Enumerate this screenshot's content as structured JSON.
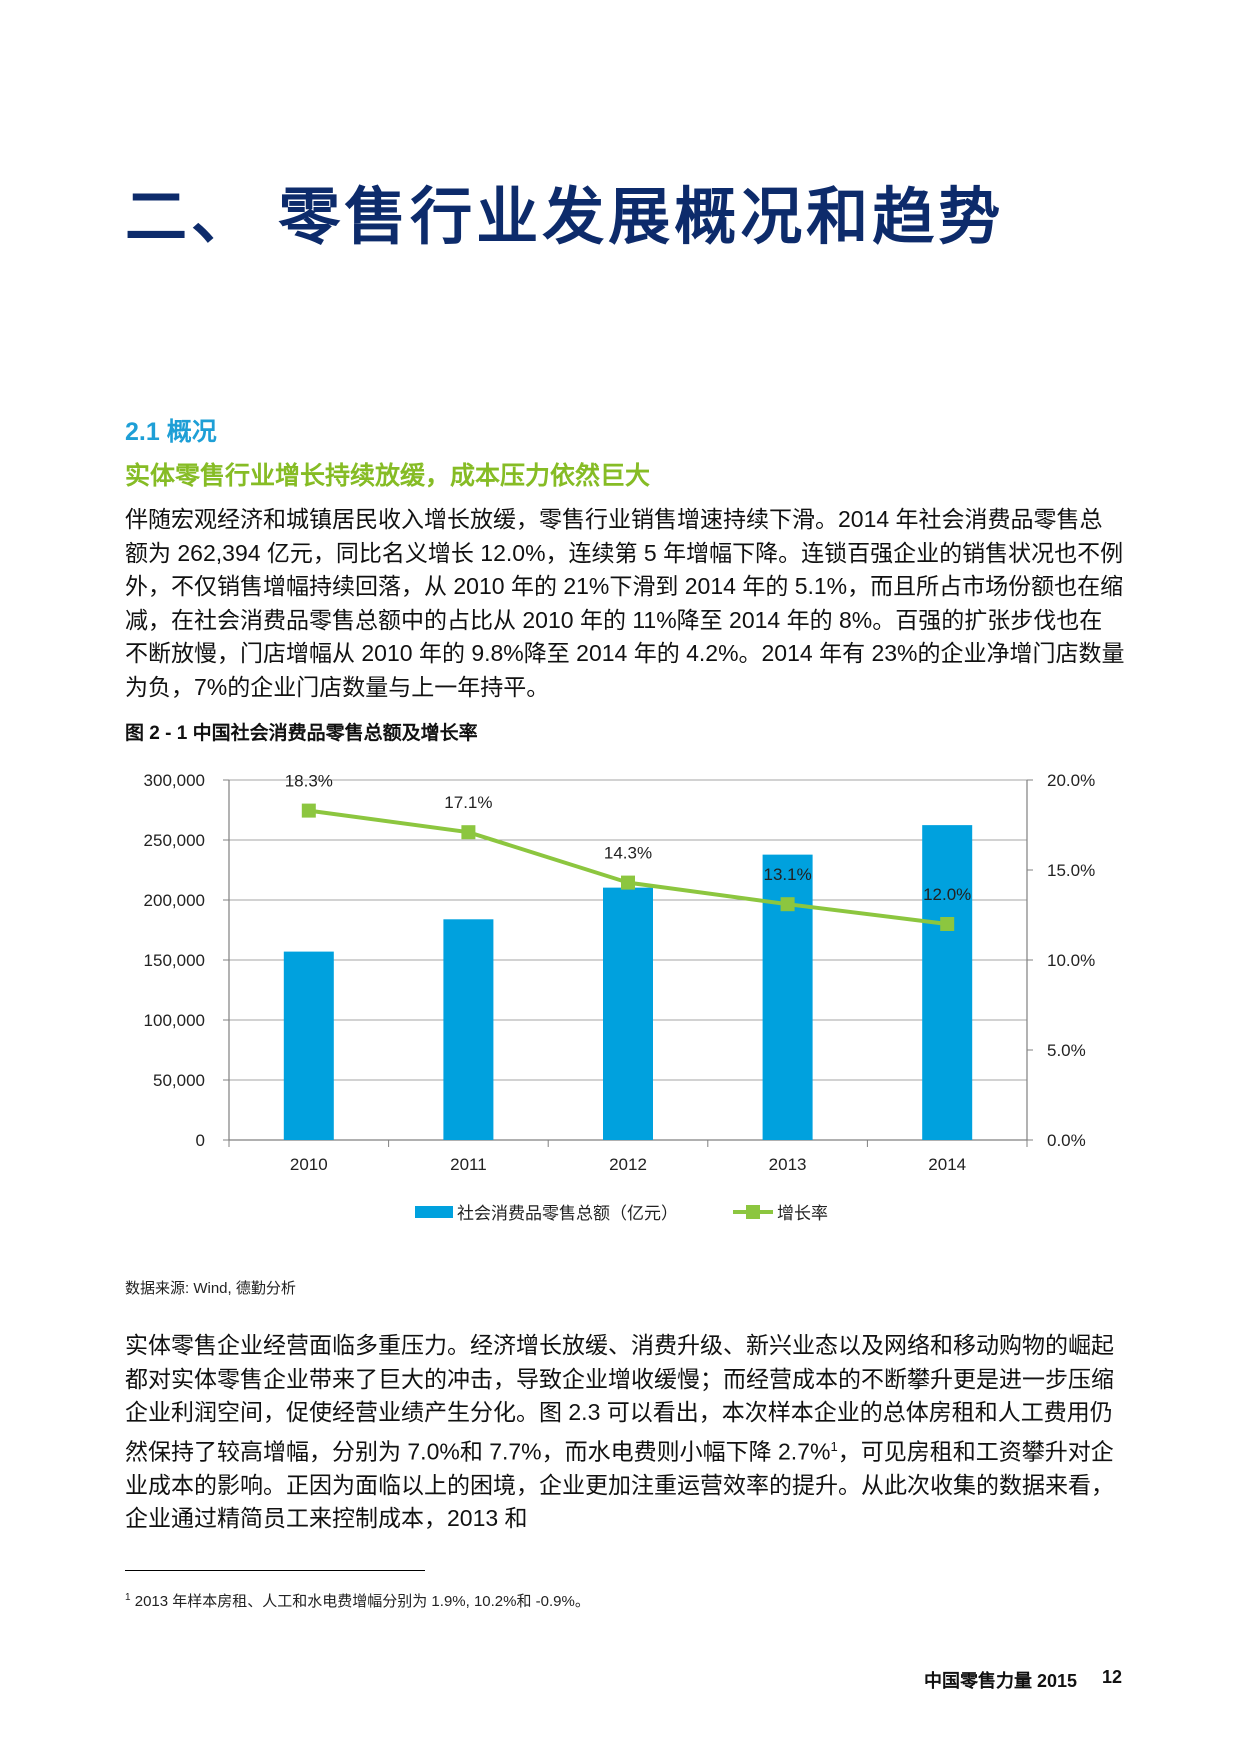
{
  "page_title": "二、 零售行业发展概况和趋势",
  "section": {
    "heading": "2.1 概况",
    "subheading": "实体零售行业增长持续放缓，成本压力依然巨大"
  },
  "paragraph1": "伴随宏观经济和城镇居民收入增长放缓，零售行业销售增速持续下滑。2014 年社会消费品零售总额为 262,394 亿元，同比名义增长 12.0%，连续第 5 年增幅下降。连锁百强企业的销售状况也不例外，不仅销售增幅持续回落，从 2010 年的 21%下滑到 2014 年的 5.1%，而且所占市场份额也在缩减，在社会消费品零售总额中的占比从 2010 年的 11%降至 2014 年的 8%。百强的扩张步伐也在不断放慢，门店增幅从 2010 年的 9.8%降至 2014 年的 4.2%。2014 年有 23%的企业净增门店数量为负，7%的企业门店数量与上一年持平。",
  "figure_caption": "图 2 - 1 中国社会消费品零售总额及增长率",
  "chart_data": {
    "type": "bar",
    "title": "图 2 - 1 中国社会消费品零售总额及增长率",
    "categories": [
      "2010",
      "2011",
      "2012",
      "2013",
      "2014"
    ],
    "series": [
      {
        "name": "社会消费品零售总额（亿元）",
        "type": "bar",
        "axis": "left",
        "values": [
          156998,
          183919,
          210307,
          237810,
          262394
        ],
        "color": "#00a1de"
      },
      {
        "name": "增长率",
        "type": "line",
        "axis": "right",
        "values": [
          18.3,
          17.1,
          14.3,
          13.1,
          12.0
        ],
        "labels": [
          "18.3%",
          "17.1%",
          "14.3%",
          "13.1%",
          "12.0%"
        ],
        "color": "#8cc63f"
      }
    ],
    "y_left": {
      "range": [
        0,
        300000
      ],
      "ticks": [
        0,
        50000,
        100000,
        150000,
        200000,
        250000,
        300000
      ],
      "tick_labels": [
        "0",
        "50,000",
        "100,000",
        "150,000",
        "200,000",
        "250,000",
        "300,000"
      ]
    },
    "y_right": {
      "range": [
        0,
        20
      ],
      "ticks": [
        0,
        5,
        10,
        15,
        20
      ],
      "tick_labels": [
        "0.0%",
        "5.0%",
        "10.0%",
        "15.0%",
        "20.0%"
      ]
    },
    "legend_position": "bottom",
    "grid": true
  },
  "source": "数据来源: Wind, 德勤分析",
  "paragraph2": {
    "before_ref": "实体零售企业经营面临多重压力。经济增长放缓、消费升级、新兴业态以及网络和移动购物的崛起都对实体零售企业带来了巨大的冲击，导致企业增收缓慢；而经营成本的不断攀升更是进一步压缩企业利润空间，促使经营业绩产生分化。图 2.3 可以看出，本次样本企业的总体房租和人工费用仍然保持了较高增幅，分别为 7.0%和 7.7%，而水电费则小幅下降 2.7%",
    "ref": "1",
    "after_ref": "，可见房租和工资攀升对企业成本的影响。正因为面临以上的困境，企业更加注重运营效率的提升。从此次收集的数据来看，企业通过精简员工来控制成本，2013 和"
  },
  "footnote": {
    "marker": "1",
    "text": " 2013 年样本房租、人工和水电费增幅分别为 1.9%, 10.2%和 -0.9%。"
  },
  "footer": {
    "title": "中国零售力量 2015",
    "page_number": "12"
  }
}
